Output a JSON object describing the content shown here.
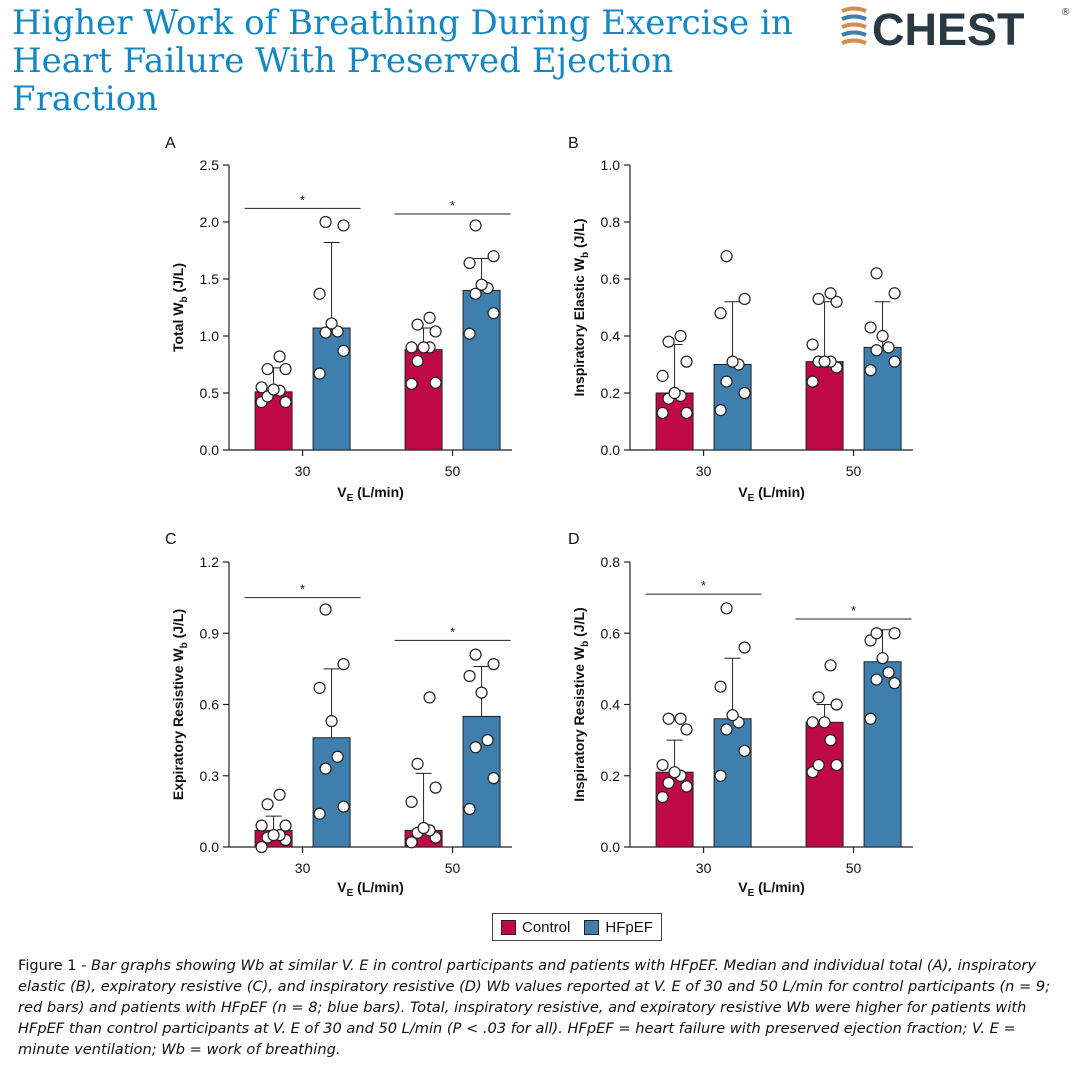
{
  "header": {
    "title": "Higher Work of Breathing During Exercise in Heart Failure With Preserved Ejection Fraction",
    "logo_text": "CHEST",
    "logo_mark": "®"
  },
  "colors": {
    "control": "#bf0a47",
    "hfpef": "#3f7fae",
    "title": "#1287c4",
    "logo_text": "#2a3a44"
  },
  "legend": {
    "items": [
      {
        "label": "Control",
        "color": "#bf0a47"
      },
      {
        "label": "HFpEF",
        "color": "#3f7fae"
      }
    ]
  },
  "caption": {
    "prefix": "Figure 1 - ",
    "text": "Bar graphs showing Wb at similar V. E in control participants and patients with HFpEF. Median and individual total (A), inspiratory elastic (B), expiratory resistive (C), and inspiratory resistive (D) Wb values reported at V. E of 30 and 50 L/min for control participants (n = 9; red bars) and patients with HFpEF (n = 8; blue bars). Total, inspiratory resistive, and expiratory resistive Wb were higher for patients with HFpEF than control participants at V. E of 30 and 50 L/min (P < .03 for all). HFpEF = heart failure with preserved ejection fraction; V. E = minute ventilation; Wb = work of breathing."
  },
  "chart_data": [
    {
      "panel": "A",
      "type": "bar",
      "ylabel": "Total W",
      "ylabel_sub": "b",
      "ylabel_suffix": " (J/L)",
      "xlabel": "V",
      "xlabel_sub": "E",
      "xlabel_suffix": " (L/min)",
      "categories": [
        "30",
        "50"
      ],
      "ylim": [
        0,
        2.5
      ],
      "yticks": [
        "0.0",
        "0.5",
        "1.0",
        "1.5",
        "2.0",
        "2.5"
      ],
      "series": [
        {
          "name": "Control",
          "values": [
            0.51,
            0.88
          ],
          "error_upper": [
            0.72,
            1.07
          ],
          "points": [
            [
              0.42,
              0.42,
              0.47,
              0.52,
              0.53,
              0.55,
              0.71,
              0.71,
              0.82
            ],
            [
              0.58,
              0.59,
              0.78,
              0.9,
              0.9,
              0.9,
              1.04,
              1.1,
              1.16
            ]
          ]
        },
        {
          "name": "HFpEF",
          "values": [
            1.07,
            1.4
          ],
          "error_upper": [
            1.82,
            1.68
          ],
          "points": [
            [
              0.67,
              0.87,
              1.03,
              1.04,
              1.11,
              1.37,
              1.97,
              2.0
            ],
            [
              1.02,
              1.2,
              1.37,
              1.42,
              1.45,
              1.64,
              1.7,
              1.97
            ]
          ]
        }
      ],
      "significance": [
        {
          "label": "*",
          "y": 2.12
        },
        {
          "label": "*",
          "y": 2.07
        }
      ]
    },
    {
      "panel": "B",
      "type": "bar",
      "ylabel": "Inspiratory Elastic W",
      "ylabel_sub": "b",
      "ylabel_suffix": " (J/L)",
      "xlabel": "V",
      "xlabel_sub": "E",
      "xlabel_suffix": " (L/min)",
      "categories": [
        "30",
        "50"
      ],
      "ylim": [
        0,
        1.0
      ],
      "yticks": [
        "0.0",
        "0.2",
        "0.4",
        "0.6",
        "0.8",
        "1.0"
      ],
      "series": [
        {
          "name": "Control",
          "values": [
            0.2,
            0.31
          ],
          "error_upper": [
            0.37,
            0.52
          ],
          "points": [
            [
              0.13,
              0.13,
              0.18,
              0.19,
              0.2,
              0.26,
              0.31,
              0.38,
              0.4
            ],
            [
              0.24,
              0.29,
              0.31,
              0.31,
              0.31,
              0.37,
              0.52,
              0.53,
              0.55
            ]
          ]
        },
        {
          "name": "HFpEF",
          "values": [
            0.3,
            0.36
          ],
          "error_upper": [
            0.52,
            0.52
          ],
          "points": [
            [
              0.14,
              0.2,
              0.24,
              0.3,
              0.31,
              0.48,
              0.53,
              0.68
            ],
            [
              0.28,
              0.31,
              0.35,
              0.36,
              0.4,
              0.43,
              0.55,
              0.62
            ]
          ]
        }
      ],
      "significance": []
    },
    {
      "panel": "C",
      "type": "bar",
      "ylabel": "Expiratory Resistive W",
      "ylabel_sub": "b",
      "ylabel_suffix": " (J/L)",
      "xlabel": "V",
      "xlabel_sub": "E",
      "xlabel_suffix": " (L/min)",
      "categories": [
        "30",
        "50"
      ],
      "ylim": [
        0,
        1.2
      ],
      "yticks": [
        "0.0",
        "0.3",
        "0.6",
        "0.9",
        "1.2"
      ],
      "series": [
        {
          "name": "Control",
          "values": [
            0.07,
            0.07
          ],
          "error_upper": [
            0.13,
            0.31
          ],
          "points": [
            [
              0.0,
              0.03,
              0.04,
              0.05,
              0.05,
              0.09,
              0.09,
              0.18,
              0.22
            ],
            [
              0.02,
              0.04,
              0.06,
              0.07,
              0.08,
              0.19,
              0.25,
              0.35,
              0.63
            ]
          ]
        },
        {
          "name": "HFpEF",
          "values": [
            0.46,
            0.55
          ],
          "error_upper": [
            0.75,
            0.76
          ],
          "points": [
            [
              0.14,
              0.17,
              0.33,
              0.38,
              0.53,
              0.67,
              0.77,
              1.0
            ],
            [
              0.16,
              0.29,
              0.42,
              0.45,
              0.65,
              0.72,
              0.77,
              0.81
            ]
          ]
        }
      ],
      "significance": [
        {
          "label": "*",
          "y": 1.05
        },
        {
          "label": "*",
          "y": 0.87
        }
      ]
    },
    {
      "panel": "D",
      "type": "bar",
      "ylabel": "Inspiratory Resistive W",
      "ylabel_sub": "b",
      "ylabel_suffix": " (J/L)",
      "xlabel": "V",
      "xlabel_sub": "E",
      "xlabel_suffix": " (L/min)",
      "categories": [
        "30",
        "50"
      ],
      "ylim": [
        0,
        0.8
      ],
      "yticks": [
        "0.0",
        "0.2",
        "0.4",
        "0.6",
        "0.8"
      ],
      "series": [
        {
          "name": "Control",
          "values": [
            0.21,
            0.35
          ],
          "error_upper": [
            0.3,
            0.4
          ],
          "points": [
            [
              0.14,
              0.17,
              0.18,
              0.2,
              0.21,
              0.23,
              0.33,
              0.36,
              0.36
            ],
            [
              0.21,
              0.23,
              0.23,
              0.3,
              0.35,
              0.35,
              0.4,
              0.42,
              0.51
            ]
          ]
        },
        {
          "name": "HFpEF",
          "values": [
            0.36,
            0.52
          ],
          "error_upper": [
            0.53,
            0.61
          ],
          "points": [
            [
              0.2,
              0.27,
              0.33,
              0.35,
              0.37,
              0.45,
              0.56,
              0.67
            ],
            [
              0.36,
              0.46,
              0.47,
              0.49,
              0.53,
              0.58,
              0.6,
              0.6
            ]
          ]
        }
      ],
      "significance": [
        {
          "label": "*",
          "y": 0.71
        },
        {
          "label": "*",
          "y": 0.64
        }
      ]
    }
  ]
}
